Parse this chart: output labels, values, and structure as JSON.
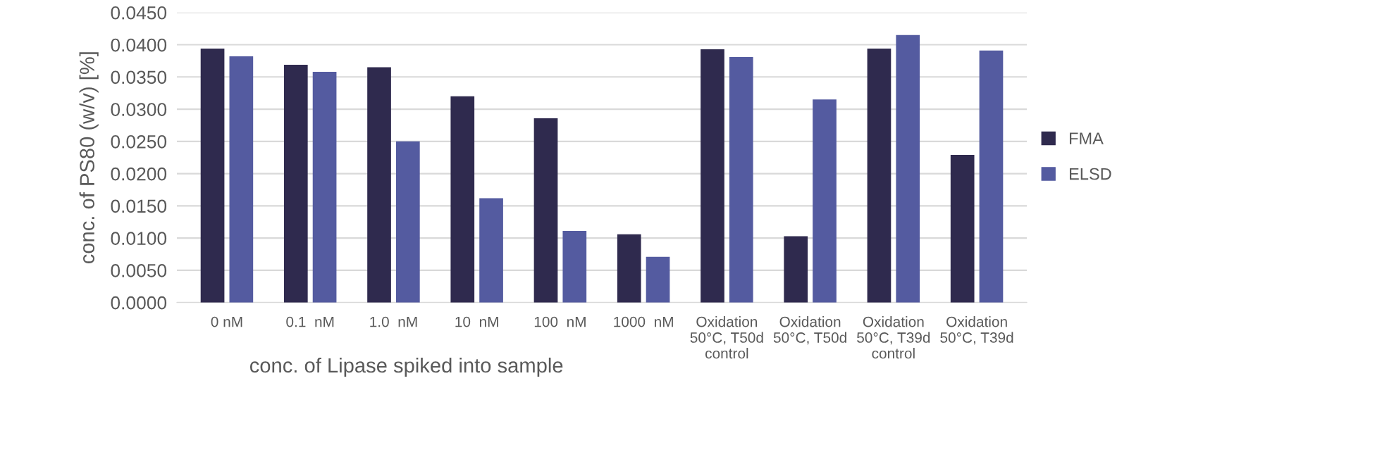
{
  "chart_data": {
    "type": "bar",
    "xlabel": "conc. of Lipase spiked into sample",
    "ylabel": "conc. of PS80 (w/v) [%]",
    "categories": [
      "0 nM",
      "0.1  nM",
      "1.0  nM",
      "10  nM",
      "100  nM",
      "1000  nM",
      "Oxidation\n50°C, T50d\ncontrol",
      "Oxidation\n50°C, T50d",
      "Oxidation\n50°C, T39d\ncontrol",
      "Oxidation\n50°C, T39d"
    ],
    "series": [
      {
        "name": "FMA",
        "color": "#2f2a4e",
        "values": [
          0.0394,
          0.0369,
          0.0365,
          0.032,
          0.0286,
          0.0106,
          0.0393,
          0.0103,
          0.0394,
          0.0229
        ]
      },
      {
        "name": "ELSD",
        "color": "#545ba0",
        "values": [
          0.0382,
          0.0358,
          0.025,
          0.0162,
          0.0111,
          0.0071,
          0.0381,
          0.0315,
          0.0415,
          0.0391
        ]
      }
    ],
    "ylim": [
      0,
      0.045
    ],
    "yticks": [
      {
        "value": 0,
        "label": "0.0000"
      },
      {
        "value": 0.005,
        "label": "0.0050"
      },
      {
        "value": 0.01,
        "label": "0.0100"
      },
      {
        "value": 0.015,
        "label": "0.0150"
      },
      {
        "value": 0.02,
        "label": "0.0200"
      },
      {
        "value": 0.025,
        "label": "0.0250"
      },
      {
        "value": 0.03,
        "label": "0.0300"
      },
      {
        "value": 0.035,
        "label": "0.0350"
      },
      {
        "value": 0.04,
        "label": "0.0400"
      },
      {
        "value": 0.045,
        "label": "0.0450"
      }
    ],
    "grid": "y",
    "legend": "right"
  }
}
